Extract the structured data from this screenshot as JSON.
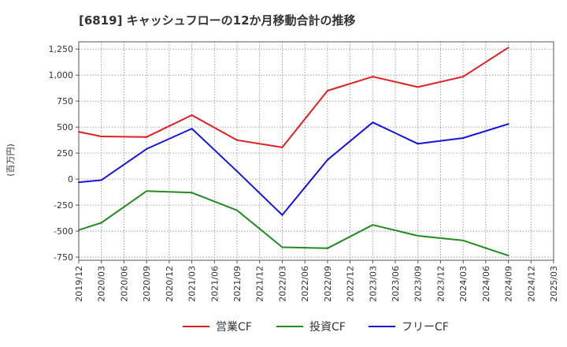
{
  "chart_data": {
    "type": "line",
    "title": "[6819]  キャッシュフローの12か月移動合計の推移",
    "ylabel": "(百万円)",
    "xlabel": "",
    "ylim": [
      -780,
      1320
    ],
    "yticks": [
      1250,
      1000,
      750,
      500,
      250,
      0,
      -250,
      -500,
      -750
    ],
    "ytick_labels": [
      "1,250",
      "1,000",
      "750",
      "500",
      "250",
      "0",
      "-250",
      "-500",
      "-750"
    ],
    "categories": [
      "2019/12",
      "2020/03",
      "2020/06",
      "2020/09",
      "2020/12",
      "2021/03",
      "2021/06",
      "2021/09",
      "2021/12",
      "2022/03",
      "2022/06",
      "2022/09",
      "2022/12",
      "2023/03",
      "2023/06",
      "2023/09",
      "2023/12",
      "2024/03",
      "2024/06",
      "2024/09",
      "2024/12",
      "2025/03"
    ],
    "grid": true,
    "legend_position": "bottom",
    "series": [
      {
        "name": "営業CF",
        "color": "#e02020",
        "values": [
          455,
          410,
          null,
          405,
          null,
          615,
          null,
          375,
          null,
          305,
          null,
          850,
          null,
          985,
          null,
          885,
          null,
          985,
          null,
          1265,
          null,
          null
        ]
      },
      {
        "name": "投資CF",
        "color": "#228b22",
        "values": [
          -490,
          -420,
          null,
          -115,
          null,
          -130,
          null,
          -300,
          null,
          -655,
          null,
          -665,
          null,
          -440,
          null,
          -545,
          null,
          -590,
          null,
          -735,
          null,
          null
        ]
      },
      {
        "name": "フリーCF",
        "color": "#1515dd",
        "values": [
          -30,
          -10,
          null,
          290,
          null,
          485,
          null,
          75,
          null,
          -345,
          null,
          185,
          null,
          545,
          null,
          340,
          null,
          395,
          null,
          530,
          null,
          null
        ]
      }
    ]
  }
}
